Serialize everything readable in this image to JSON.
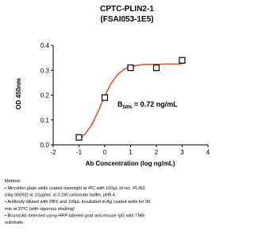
{
  "chart_data": {
    "type": "dose-response",
    "title": "CPTC-PLIN2-1",
    "subtitle": "(FSAI053-1E5)",
    "x_label": "Ab Concentration (log ng/mL)",
    "y_label": "OD 450nm",
    "xlim": [
      -2,
      4
    ],
    "xticks": [
      -2,
      -1,
      0,
      1,
      2,
      3,
      4
    ],
    "ylim": [
      0,
      0.4
    ],
    "yticks": [
      {
        "value": 0,
        "label": "0.0"
      },
      0.1,
      0.2,
      0.3,
      0.4
    ],
    "points": {
      "x": [
        -1,
        0,
        1,
        2,
        3
      ],
      "values": [
        0.03,
        0.19,
        0.31,
        0.31,
        0.34
      ],
      "color": "#000000"
    },
    "fit": {
      "x": [
        -1,
        -0.75,
        -0.5,
        -0.25,
        0,
        0.25,
        0.5,
        0.75,
        1,
        1.5,
        2,
        2.5,
        3
      ],
      "values": [
        0.023,
        0.045,
        0.082,
        0.136,
        0.196,
        0.248,
        0.283,
        0.304,
        0.315,
        0.323,
        0.324,
        0.325,
        0.325
      ],
      "color": "#e4572e"
    },
    "annotation": {
      "main": "B",
      "sub": "50%",
      "rest": " = 0.72 ng/mL"
    }
  },
  "method": {
    "heading": "Method:",
    "lines": [
      "• Microtiter plate wells coated overnight at 4ºC  with 100µL of rec. PLIN2",
      "(rAg 00092) at 10µg/mL in 0.2M carbonate buffer, pH9.4.",
      "• Antibody diluted with PBS and 100µL incubated in Ag coated wells for 30",
      "min at 37ºC (with vigorous shaking)",
      "• Bound Ab detected using HRP-labeled goat anti-mouse IgG with TMB",
      "substrate."
    ]
  }
}
